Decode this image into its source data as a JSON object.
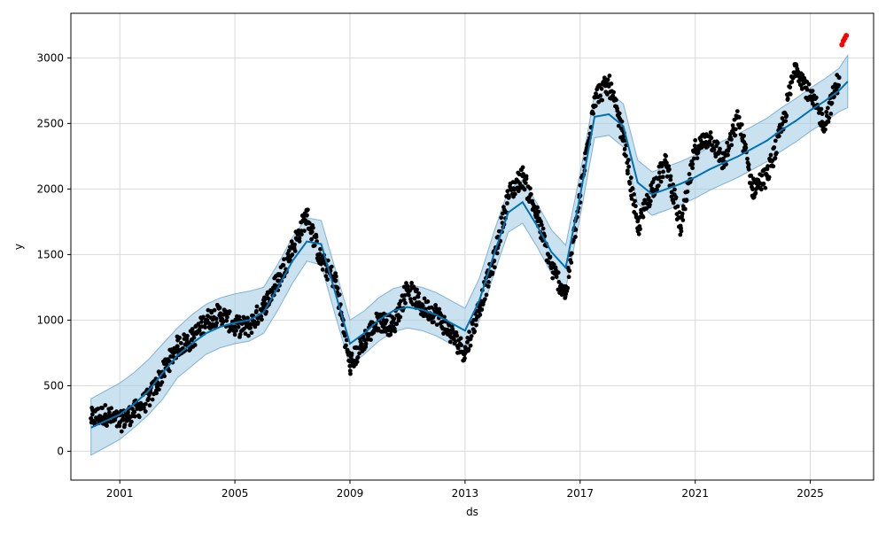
{
  "chart_data": {
    "type": "scatter",
    "title": "",
    "xlabel": "ds",
    "ylabel": "y",
    "xlim": [
      1999.3,
      2027.2
    ],
    "ylim": [
      -220,
      3340
    ],
    "x_ticks": [
      2001,
      2005,
      2009,
      2013,
      2017,
      2021,
      2025
    ],
    "x_tick_labels": [
      "2001",
      "2005",
      "2009",
      "2013",
      "2017",
      "2021",
      "2025"
    ],
    "y_ticks": [
      0,
      500,
      1000,
      1500,
      2000,
      2500,
      3000
    ],
    "y_tick_labels": [
      "0",
      "500",
      "1000",
      "1500",
      "2000",
      "2500",
      "3000"
    ],
    "grid": true,
    "colors": {
      "observed": "#000000",
      "forecast": "#0072B2",
      "interval": "#9ecae1",
      "recent": "#ff0000"
    },
    "forecast": {
      "x": [
        2000.0,
        2000.5,
        2001.0,
        2001.5,
        2002.0,
        2002.5,
        2003.0,
        2003.5,
        2004.0,
        2004.5,
        2005.0,
        2005.5,
        2006.0,
        2006.5,
        2007.0,
        2007.5,
        2008.0,
        2008.5,
        2009.0,
        2009.5,
        2010.0,
        2010.5,
        2011.0,
        2011.5,
        2012.0,
        2012.5,
        2013.0,
        2013.5,
        2014.0,
        2014.5,
        2015.0,
        2015.5,
        2016.0,
        2016.5,
        2017.0,
        2017.5,
        2018.0,
        2018.5,
        2019.0,
        2019.5,
        2020.0,
        2020.5,
        2021.0,
        2021.5,
        2022.0,
        2022.5,
        2023.0,
        2023.5,
        2024.0,
        2024.5,
        2025.0,
        2025.5,
        2026.0,
        2026.3
      ],
      "yhat": [
        180,
        230,
        280,
        360,
        460,
        600,
        730,
        820,
        900,
        950,
        980,
        1000,
        1060,
        1250,
        1450,
        1600,
        1580,
        1200,
        820,
        900,
        1000,
        1070,
        1100,
        1080,
        1040,
        980,
        920,
        1150,
        1500,
        1820,
        1900,
        1720,
        1520,
        1400,
        1950,
        2550,
        2570,
        2480,
        2050,
        1960,
        2000,
        2040,
        2090,
        2150,
        2200,
        2250,
        2310,
        2370,
        2450,
        2520,
        2600,
        2670,
        2750,
        2820
      ],
      "lower": [
        -30,
        30,
        90,
        180,
        280,
        400,
        560,
        650,
        740,
        790,
        820,
        840,
        900,
        1080,
        1280,
        1450,
        1420,
        1030,
        650,
        740,
        840,
        910,
        940,
        920,
        880,
        820,
        760,
        1000,
        1350,
        1670,
        1740,
        1560,
        1360,
        1240,
        1790,
        2390,
        2410,
        2320,
        1890,
        1800,
        1840,
        1880,
        1930,
        1990,
        2040,
        2090,
        2150,
        2210,
        2290,
        2360,
        2440,
        2510,
        2590,
        2620
      ],
      "upper": [
        400,
        460,
        520,
        600,
        700,
        820,
        940,
        1040,
        1120,
        1170,
        1200,
        1220,
        1250,
        1430,
        1630,
        1780,
        1760,
        1380,
        1000,
        1070,
        1170,
        1240,
        1270,
        1250,
        1210,
        1150,
        1090,
        1320,
        1670,
        1990,
        2070,
        1890,
        1690,
        1570,
        2120,
        2720,
        2740,
        2650,
        2220,
        2130,
        2170,
        2210,
        2260,
        2320,
        2370,
        2420,
        2480,
        2540,
        2620,
        2690,
        2770,
        2840,
        2920,
        3020
      ]
    },
    "observed": {
      "x": [
        2000.0,
        2000.5,
        2001.0,
        2001.5,
        2002.0,
        2002.5,
        2003.0,
        2003.5,
        2004.0,
        2004.5,
        2005.0,
        2005.5,
        2006.0,
        2006.5,
        2007.0,
        2007.5,
        2008.0,
        2008.5,
        2009.0,
        2009.5,
        2010.0,
        2010.5,
        2011.0,
        2011.5,
        2012.0,
        2012.5,
        2013.0,
        2013.5,
        2014.0,
        2014.5,
        2015.0,
        2015.5,
        2016.0,
        2016.5,
        2017.0,
        2017.5,
        2018.0,
        2018.5,
        2019.0,
        2019.5,
        2020.0,
        2020.5,
        2021.0,
        2021.5,
        2022.0,
        2022.5,
        2023.0,
        2023.5,
        2024.0,
        2024.5,
        2025.0,
        2025.5,
        2026.0
      ],
      "y": [
        250,
        280,
        220,
        300,
        400,
        600,
        800,
        850,
        1000,
        1050,
        950,
        950,
        1100,
        1300,
        1550,
        1800,
        1450,
        1300,
        650,
        850,
        1000,
        950,
        1250,
        1100,
        1050,
        900,
        750,
        1100,
        1450,
        1950,
        2100,
        1800,
        1400,
        1200,
        1950,
        2700,
        2800,
        2400,
        1700,
        2000,
        2200,
        1700,
        2300,
        2400,
        2200,
        2550,
        2000,
        2100,
        2450,
        2950,
        2700,
        2500,
        2850
      ]
    },
    "recent": {
      "x": [
        2026.1,
        2026.15,
        2026.2,
        2026.25
      ],
      "y": [
        3100,
        3130,
        3150,
        3170
      ]
    }
  }
}
